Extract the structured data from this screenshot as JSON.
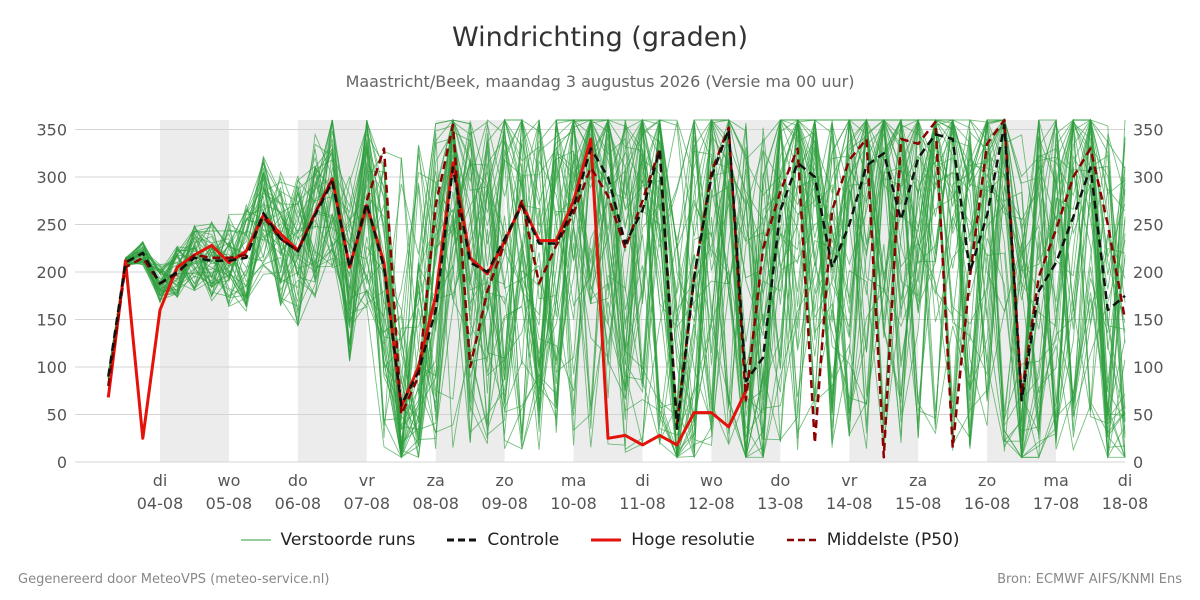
{
  "chart_data": {
    "type": "line",
    "title": "Windrichting (graden)",
    "subtitle": "Maastricht/Beek, maandag  3 augustus 2026 (Versie ma 00 uur)",
    "ylim": [
      0,
      360
    ],
    "yticks": [
      0,
      50,
      100,
      150,
      200,
      250,
      300,
      350
    ],
    "xlim": [
      -1.25,
      14
    ],
    "xticks": [
      {
        "day": "di",
        "date": "04-08"
      },
      {
        "day": "wo",
        "date": "05-08"
      },
      {
        "day": "do",
        "date": "06-08"
      },
      {
        "day": "vr",
        "date": "07-08"
      },
      {
        "day": "za",
        "date": "08-08"
      },
      {
        "day": "zo",
        "date": "09-08"
      },
      {
        "day": "ma",
        "date": "10-08"
      },
      {
        "day": "di",
        "date": "11-08"
      },
      {
        "day": "wo",
        "date": "12-08"
      },
      {
        "day": "do",
        "date": "13-08"
      },
      {
        "day": "vr",
        "date": "14-08"
      },
      {
        "day": "za",
        "date": "15-08"
      },
      {
        "day": "zo",
        "date": "16-08"
      },
      {
        "day": "ma",
        "date": "17-08"
      },
      {
        "day": "di",
        "date": "18-08"
      }
    ],
    "shaded_days": [
      0,
      2,
      4,
      6,
      8,
      10,
      12
    ],
    "grid": true,
    "legend_position": "bottom",
    "series": [
      {
        "name": "Hoge resolutie",
        "color": "#e3120b",
        "style": "solid",
        "x": [
          -0.75,
          -0.5,
          -0.25,
          0,
          0.25,
          0.5,
          0.75,
          1,
          1.25,
          1.5,
          1.75,
          2,
          2.25,
          2.5,
          2.75,
          3,
          3.25,
          3.5,
          3.75,
          4,
          4.25,
          4.5,
          4.75,
          5,
          5.25,
          5.5,
          5.75,
          6,
          6.25,
          6.5,
          6.75,
          7,
          7.25,
          7.5,
          7.75,
          8,
          8.25,
          8.5,
          8.75,
          9
        ],
        "values": [
          68,
          212,
          25,
          160,
          205,
          218,
          228,
          210,
          222,
          260,
          240,
          223,
          262,
          298,
          205,
          270,
          210,
          58,
          100,
          175,
          315,
          215,
          198,
          232,
          272,
          233,
          233,
          275,
          340,
          25,
          28,
          18,
          28,
          18,
          52,
          52,
          37,
          75,
          null,
          null
        ]
      },
      {
        "name": "Controle",
        "color": "#111111",
        "style": "dashed",
        "x": [
          -0.75,
          -0.5,
          -0.25,
          0,
          0.25,
          0.5,
          0.75,
          1,
          1.25,
          1.5,
          1.75,
          2,
          2.25,
          2.5,
          2.75,
          3,
          3.25,
          3.5,
          3.75,
          4,
          4.25,
          4.5,
          4.75,
          5,
          5.25,
          5.5,
          5.75,
          6,
          6.25,
          6.5,
          6.75,
          7,
          7.25,
          7.5,
          7.75,
          8,
          8.25,
          8.5,
          8.75,
          9,
          9.25,
          9.5,
          9.75,
          10,
          10.25,
          10.5,
          10.75,
          11,
          11.25,
          11.5,
          11.75,
          12,
          12.25,
          12.5,
          12.75,
          13,
          13.25,
          13.5,
          13.75,
          14
        ],
        "values": [
          90,
          210,
          220,
          188,
          200,
          215,
          212,
          212,
          215,
          262,
          235,
          222,
          260,
          295,
          205,
          272,
          205,
          60,
          95,
          160,
          310,
          210,
          200,
          235,
          270,
          230,
          230,
          268,
          330,
          300,
          230,
          265,
          328,
          35,
          195,
          300,
          350,
          85,
          110,
          265,
          315,
          300,
          205,
          250,
          312,
          325,
          255,
          320,
          345,
          340,
          200,
          260,
          355,
          65,
          180,
          210,
          258,
          310,
          160,
          175
        ]
      },
      {
        "name": "Middelste (P50)",
        "color": "#8b0000",
        "style": "dashed",
        "x": [
          -0.75,
          -0.5,
          -0.25,
          0,
          0.25,
          0.5,
          0.75,
          1,
          1.25,
          1.5,
          1.75,
          2,
          2.25,
          2.5,
          2.75,
          3,
          3.25,
          3.5,
          3.75,
          4,
          4.25,
          4.5,
          4.75,
          5,
          5.25,
          5.5,
          5.75,
          6,
          6.25,
          6.5,
          6.75,
          7,
          7.25,
          7.5,
          7.75,
          8,
          8.25,
          8.5,
          8.75,
          9,
          9.25,
          9.5,
          9.75,
          10,
          10.25,
          10.5,
          10.75,
          11,
          11.25,
          11.5,
          11.75,
          12,
          12.25,
          12.5,
          12.75,
          13,
          13.25,
          13.5,
          13.75,
          14
        ],
        "values": [
          80,
          205,
          215,
          188,
          198,
          218,
          215,
          215,
          218,
          258,
          235,
          222,
          262,
          298,
          205,
          275,
          330,
          50,
          90,
          270,
          355,
          100,
          180,
          230,
          275,
          188,
          228,
          262,
          310,
          280,
          225,
          275,
          330,
          40,
          195,
          305,
          352,
          65,
          225,
          285,
          330,
          20,
          265,
          318,
          340,
          5,
          340,
          335,
          358,
          15,
          195,
          335,
          360,
          70,
          195,
          245,
          300,
          330,
          250,
          150
        ]
      }
    ],
    "legend": [
      {
        "label": "Verstoorde runs",
        "color": "#2e9e3e",
        "style": "thin"
      },
      {
        "label": "Controle",
        "color": "#111111",
        "style": "dashed"
      },
      {
        "label": "Hoge resolutie",
        "color": "#e3120b",
        "style": "solid"
      },
      {
        "label": "Middelste (P50)",
        "color": "#8b0000",
        "style": "dashed"
      }
    ],
    "ensemble": {
      "name": "Verstoorde runs",
      "color": "#2e9e3e",
      "count": 50
    }
  },
  "footer": {
    "left": "Gegenereerd door MeteoVPS (meteo-service.nl)",
    "right": "Bron: ECMWF AIFS/KNMI Ens"
  }
}
